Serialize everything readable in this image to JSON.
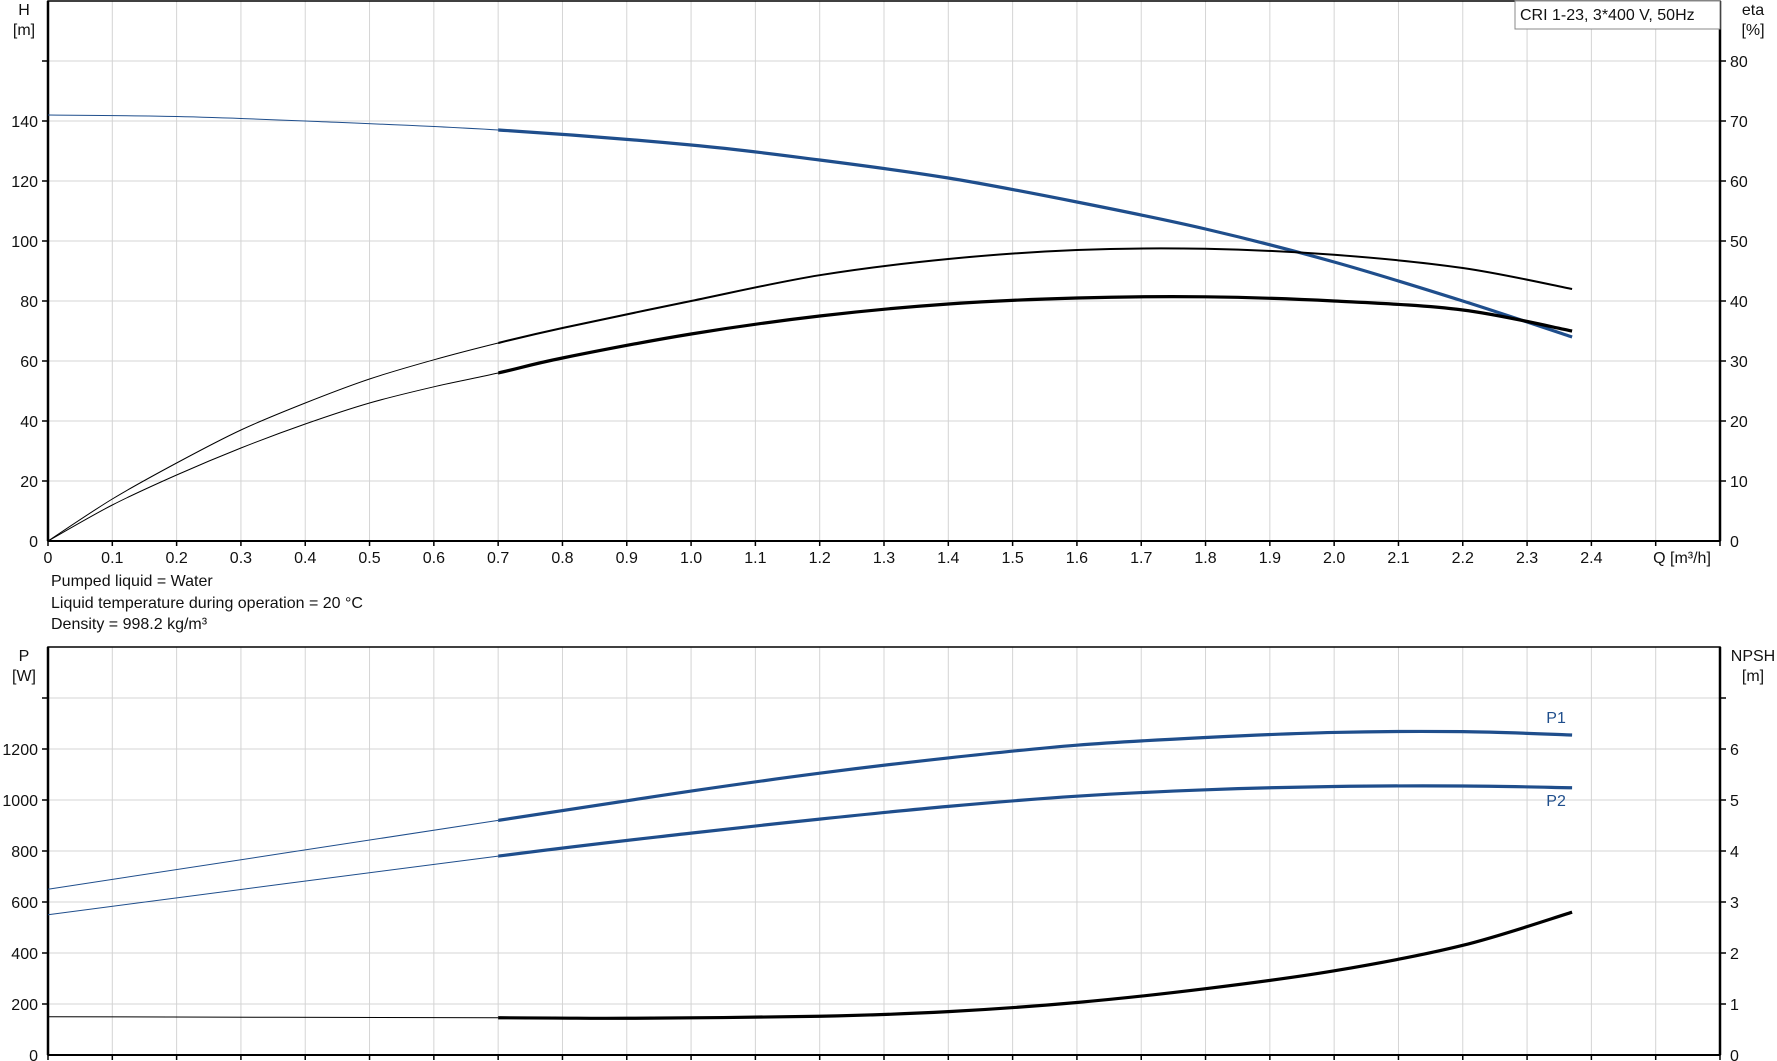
{
  "chart_data": [
    {
      "type": "line",
      "title_box": "CRI 1-23, 3*400 V, 50Hz",
      "xlabel": "Q [m³/h]",
      "ylabel_left": [
        "H",
        "[m]"
      ],
      "ylabel_right": [
        "eta",
        "[%]"
      ],
      "xlim": [
        0,
        2.6
      ],
      "ylim_left": [
        0,
        180
      ],
      "ylim_right": [
        0,
        90
      ],
      "x_ticks": [
        "0",
        "0.1",
        "0.2",
        "0.3",
        "0.4",
        "0.5",
        "0.6",
        "0.7",
        "0.8",
        "0.9",
        "1.0",
        "1.1",
        "1.2",
        "1.3",
        "1.4",
        "1.5",
        "1.6",
        "1.7",
        "1.8",
        "1.9",
        "2.0",
        "2.1",
        "2.2",
        "2.3",
        "2.4"
      ],
      "y_ticks_left": [
        "0",
        "20",
        "40",
        "60",
        "80",
        "100",
        "120",
        "140"
      ],
      "y_ticks_right": [
        "0",
        "10",
        "20",
        "30",
        "40",
        "50",
        "60",
        "70",
        "80"
      ],
      "grid": true,
      "colors": {
        "head": "#1f4e8c",
        "eta": "#000000",
        "grid": "#d0d0d0"
      },
      "operating_range_start": 0.7,
      "series": [
        {
          "axis": "left",
          "color": "#1f4e8c",
          "x": [
            0,
            0.2,
            0.4,
            0.7,
            1.0,
            1.2,
            1.4,
            1.6,
            1.8,
            2.0,
            2.2,
            2.37
          ],
          "y": [
            142,
            141.5,
            140,
            137,
            132,
            127,
            121,
            113,
            104,
            93,
            80,
            68
          ]
        },
        {
          "axis": "right",
          "color": "#000000",
          "thin": true,
          "x": [
            0,
            0.1,
            0.2,
            0.3,
            0.4,
            0.5,
            0.6,
            0.7,
            0.8,
            1.0,
            1.2,
            1.4,
            1.6,
            1.8,
            2.0,
            2.2,
            2.37
          ],
          "y": [
            0,
            7,
            13,
            18.5,
            23,
            27,
            30.2,
            33,
            35.5,
            40,
            44.3,
            47,
            48.5,
            48.7,
            47.7,
            45.5,
            42
          ]
        },
        {
          "axis": "right",
          "color": "#000000",
          "x": [
            0,
            0.1,
            0.2,
            0.3,
            0.4,
            0.5,
            0.6,
            0.7,
            0.8,
            1.0,
            1.2,
            1.4,
            1.6,
            1.8,
            2.0,
            2.2,
            2.37
          ],
          "y": [
            0,
            6,
            11,
            15.5,
            19.5,
            23,
            25.7,
            28,
            30.5,
            34.5,
            37.5,
            39.5,
            40.5,
            40.7,
            40,
            38.5,
            35
          ]
        }
      ]
    },
    {
      "type": "line",
      "xlim": [
        0,
        2.6
      ],
      "ylabel_left": [
        "P",
        "[W]"
      ],
      "ylabel_right": [
        "NPSH",
        "[m]"
      ],
      "ylim_left": [
        0,
        1600
      ],
      "ylim_right": [
        0,
        8
      ],
      "y_ticks_left": [
        "0",
        "200",
        "400",
        "600",
        "800",
        "1000",
        "1200"
      ],
      "y_ticks_right": [
        "0",
        "1",
        "2",
        "3",
        "4",
        "5",
        "6"
      ],
      "grid": true,
      "series": [
        {
          "name": "P1",
          "axis": "left",
          "color": "#1f4e8c",
          "x": [
            0,
            0.7,
            1.0,
            1.2,
            1.4,
            1.6,
            1.8,
            2.0,
            2.2,
            2.37
          ],
          "y": [
            650,
            920,
            1035,
            1105,
            1165,
            1215,
            1245,
            1265,
            1268,
            1255
          ]
        },
        {
          "name": "P2",
          "axis": "left",
          "color": "#1f4e8c",
          "x": [
            0,
            0.7,
            1.0,
            1.2,
            1.4,
            1.6,
            1.8,
            2.0,
            2.2,
            2.37
          ],
          "y": [
            550,
            780,
            870,
            925,
            975,
            1015,
            1040,
            1053,
            1055,
            1048
          ]
        },
        {
          "axis": "right",
          "color": "#000000",
          "x": [
            0,
            0.7,
            0.9,
            1.2,
            1.4,
            1.6,
            1.8,
            2.0,
            2.2,
            2.37
          ],
          "y": [
            0.75,
            0.73,
            0.72,
            0.76,
            0.85,
            1.03,
            1.3,
            1.65,
            2.15,
            2.8
          ]
        }
      ]
    }
  ],
  "liquid_info": [
    "Pumped liquid = Water",
    "Liquid temperature during operation = 20 °C",
    "Density = 998.2 kg/m³"
  ]
}
